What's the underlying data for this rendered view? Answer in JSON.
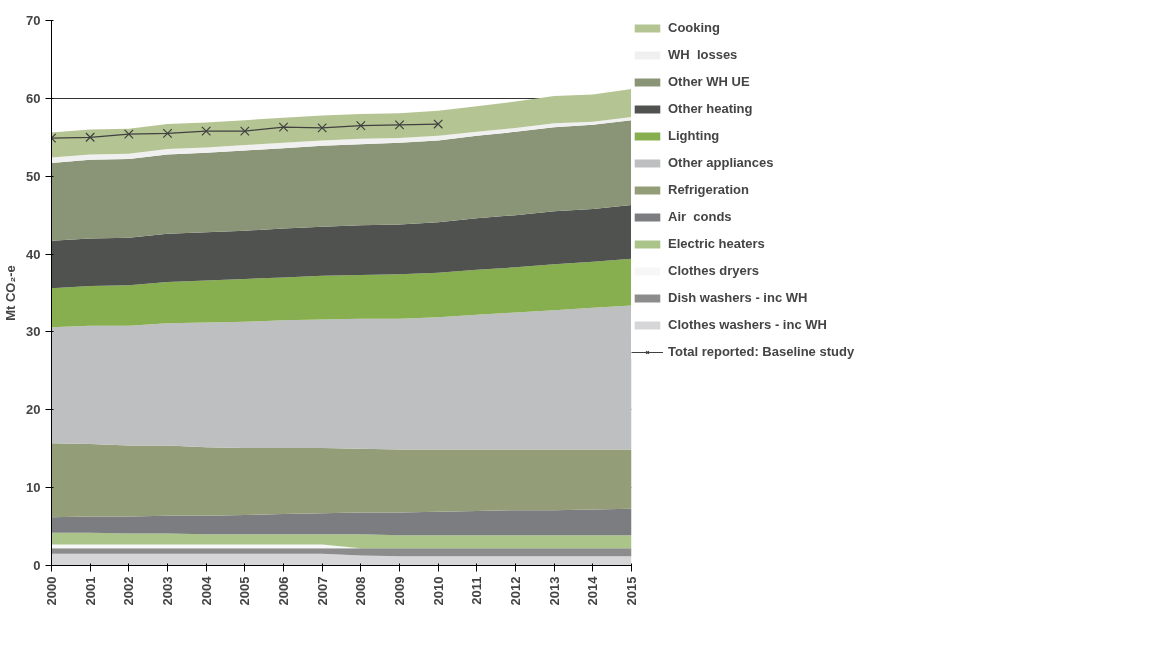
{
  "chart_data": {
    "type": "area",
    "stacked": true,
    "ylabel": "Mt CO₂-e",
    "x": [
      2000,
      2001,
      2002,
      2003,
      2004,
      2005,
      2006,
      2007,
      2008,
      2009,
      2010,
      2011,
      2012,
      2013,
      2014,
      2015
    ],
    "xlim": [
      2000,
      2015
    ],
    "xticks": [
      2000,
      2001,
      2002,
      2003,
      2004,
      2005,
      2006,
      2007,
      2008,
      2009,
      2010,
      2011,
      2012,
      2013,
      2014,
      2015
    ],
    "ylim": [
      0,
      70
    ],
    "yticks": [
      0,
      10,
      20,
      30,
      40,
      50,
      60,
      70
    ],
    "grid": "y",
    "legend": "right",
    "series": [
      {
        "name": "Clothes washers - inc WH",
        "color": "#d6d6d8",
        "values": [
          1.5,
          1.5,
          1.5,
          1.5,
          1.5,
          1.5,
          1.5,
          1.5,
          1.3,
          1.2,
          1.2,
          1.2,
          1.2,
          1.2,
          1.2,
          1.2
        ]
      },
      {
        "name": "Dish washers - inc WH",
        "color": "#8c8c8c",
        "values": [
          0.7,
          0.7,
          0.7,
          0.7,
          0.7,
          0.7,
          0.7,
          0.7,
          0.9,
          1.0,
          1.0,
          1.0,
          1.0,
          1.0,
          1.0,
          1.0
        ]
      },
      {
        "name": "Clothes dryers",
        "color": "#f7f7f7",
        "values": [
          0.5,
          0.5,
          0.5,
          0.5,
          0.5,
          0.5,
          0.5,
          0.5,
          0,
          0,
          0,
          0,
          0,
          0,
          0,
          0
        ]
      },
      {
        "name": "Electric heaters",
        "color": "#aac48a",
        "values": [
          1.5,
          1.5,
          1.4,
          1.4,
          1.3,
          1.3,
          1.3,
          1.3,
          1.8,
          1.7,
          1.7,
          1.7,
          1.7,
          1.7,
          1.7,
          1.7
        ]
      },
      {
        "name": "Air  conds",
        "color": "#7b7d80",
        "values": [
          2.0,
          2.1,
          2.2,
          2.3,
          2.4,
          2.5,
          2.6,
          2.7,
          2.8,
          2.9,
          3.0,
          3.1,
          3.2,
          3.2,
          3.3,
          3.4
        ]
      },
      {
        "name": "Refrigeration",
        "color": "#939e78",
        "values": [
          9.5,
          9.3,
          9.1,
          9.0,
          8.8,
          8.6,
          8.5,
          8.4,
          8.2,
          8.1,
          8.0,
          7.9,
          7.8,
          7.8,
          7.7,
          7.6
        ]
      },
      {
        "name": "Other appliances",
        "color": "#bdbfc1",
        "values": [
          14.9,
          15.2,
          15.4,
          15.7,
          16.0,
          16.2,
          16.4,
          16.5,
          16.7,
          16.8,
          17.0,
          17.3,
          17.6,
          17.9,
          18.2,
          18.5
        ]
      },
      {
        "name": "Lighting",
        "color": "#87ae4f",
        "values": [
          5.0,
          5.1,
          5.2,
          5.3,
          5.4,
          5.5,
          5.5,
          5.6,
          5.6,
          5.7,
          5.7,
          5.8,
          5.8,
          5.9,
          5.9,
          6.0
        ]
      },
      {
        "name": "Other heating",
        "color": "#4f524f",
        "values": [
          6.1,
          6.1,
          6.1,
          6.2,
          6.2,
          6.2,
          6.3,
          6.3,
          6.4,
          6.4,
          6.5,
          6.6,
          6.7,
          6.8,
          6.8,
          6.9
        ]
      },
      {
        "name": "Other WH UE",
        "color": "#8a9476",
        "values": [
          10.0,
          10.1,
          10.1,
          10.2,
          10.2,
          10.3,
          10.3,
          10.4,
          10.4,
          10.5,
          10.5,
          10.6,
          10.7,
          10.8,
          10.8,
          10.9
        ]
      },
      {
        "name": "WH  losses",
        "color": "#f0f0f0",
        "values": [
          0.7,
          0.7,
          0.7,
          0.7,
          0.7,
          0.7,
          0.7,
          0.7,
          0.7,
          0.6,
          0.6,
          0.5,
          0.5,
          0.5,
          0.4,
          0.4
        ]
      },
      {
        "name": "Cooking",
        "color": "#b5c493",
        "values": [
          3.2,
          3.2,
          3.2,
          3.2,
          3.2,
          3.2,
          3.2,
          3.2,
          3.2,
          3.2,
          3.2,
          3.3,
          3.4,
          3.5,
          3.5,
          3.6
        ]
      },
      {
        "name": "Total reported: Baseline study",
        "type": "line",
        "marker": "cross",
        "color": "#404040",
        "x": [
          2000,
          2001,
          2002,
          2003,
          2004,
          2005,
          2006,
          2007,
          2008,
          2009,
          2010
        ],
        "values": [
          54.9,
          55.0,
          55.4,
          55.5,
          55.8,
          55.8,
          56.3,
          56.2,
          56.5,
          56.6,
          56.7
        ]
      }
    ]
  }
}
